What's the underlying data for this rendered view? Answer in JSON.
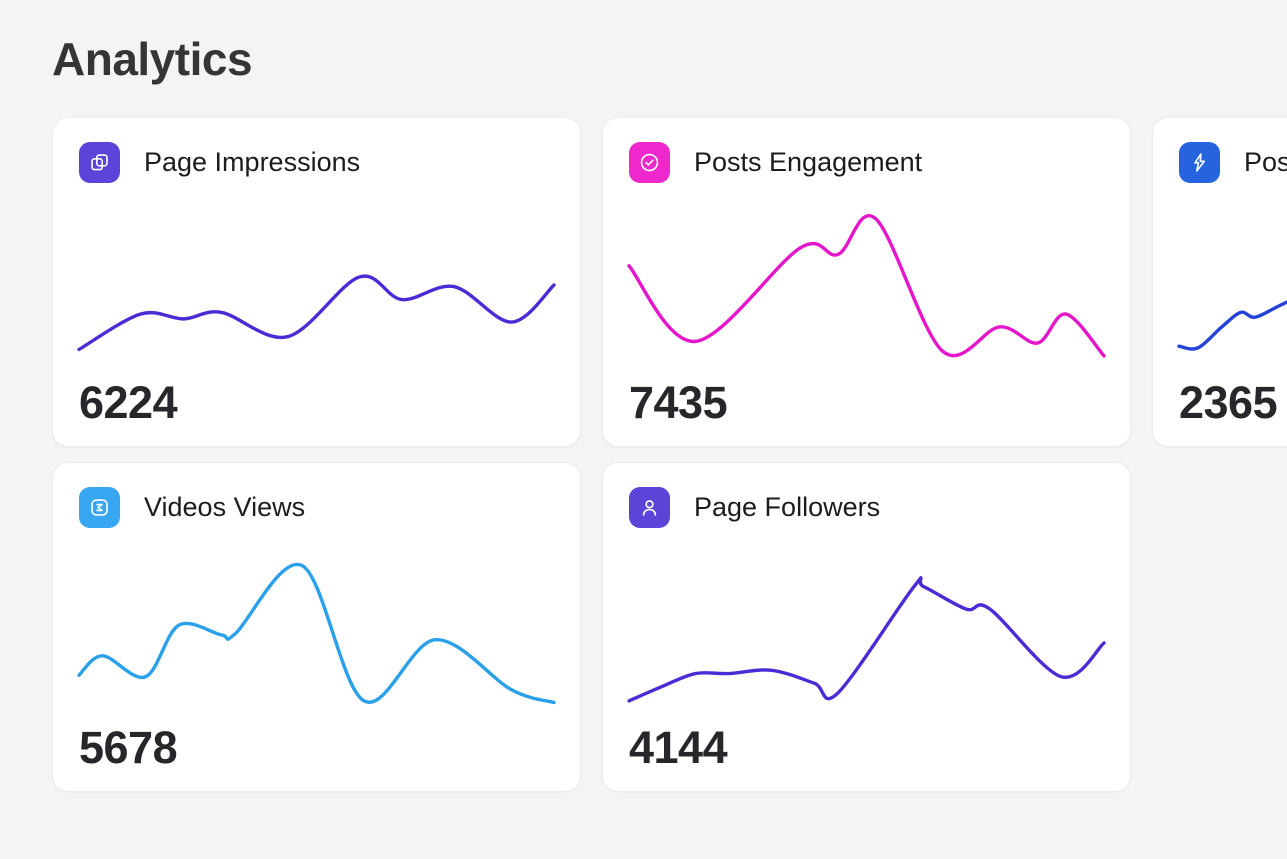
{
  "page": {
    "title": "Analytics",
    "background": "#F4F4F5"
  },
  "cards": [
    {
      "title": "Page Impressions",
      "value": "6224",
      "icon": "pages-icon",
      "icon_bg": "#5B44D8",
      "line_color": "#4C2AD6"
    },
    {
      "title": "Posts Engagement",
      "value": "7435",
      "icon": "check-circle-icon",
      "icon_bg": "#EE28CC",
      "line_color": "#E615CB"
    },
    {
      "title": "Post",
      "value": "2365",
      "icon": "lightning-icon",
      "icon_bg": "#2563DF",
      "line_color": "#2342D8"
    },
    {
      "title": "Videos Views",
      "value": "5678",
      "icon": "sigma-box-icon",
      "icon_bg": "#38A6F1",
      "line_color": "#2AA0EA"
    },
    {
      "title": "Page Followers",
      "value": "4144",
      "icon": "user-icon",
      "icon_bg": "#5B44D8",
      "line_color": "#4C2AD6"
    }
  ],
  "chart_data": [
    {
      "type": "line",
      "title": "Page Impressions",
      "current_value": 6224,
      "axes": "none (sparkline, unlabeled)",
      "y_orientation": "0=top, 100=bottom (screen space)",
      "points_norm": [
        [
          0,
          86
        ],
        [
          13,
          64
        ],
        [
          22,
          67
        ],
        [
          30,
          63
        ],
        [
          44,
          78
        ],
        [
          59,
          41
        ],
        [
          68,
          55
        ],
        [
          79,
          47
        ],
        [
          91,
          69
        ],
        [
          100,
          46
        ]
      ]
    },
    {
      "type": "line",
      "title": "Posts Engagement",
      "current_value": 7435,
      "axes": "none (sparkline, unlabeled)",
      "y_orientation": "0=top, 100=bottom (screen space)",
      "points_norm": [
        [
          0,
          34
        ],
        [
          14,
          81
        ],
        [
          36,
          23
        ],
        [
          44,
          27
        ],
        [
          52,
          5
        ],
        [
          66,
          87
        ],
        [
          78,
          72
        ],
        [
          86,
          82
        ],
        [
          92,
          64
        ],
        [
          100,
          90
        ]
      ]
    },
    {
      "type": "line",
      "title": "Post (card clipped at right viewport edge)",
      "current_value": 2365,
      "axes": "none (sparkline, unlabeled)",
      "y_orientation": "0=top, 100=bottom (screen space)",
      "points_norm": [
        [
          0,
          84
        ],
        [
          4,
          85
        ],
        [
          9,
          72
        ],
        [
          13,
          63
        ],
        [
          16,
          66
        ],
        [
          21,
          59
        ],
        [
          26,
          52
        ]
      ]
    },
    {
      "type": "line",
      "title": "Videos Views",
      "current_value": 5678,
      "axes": "none (sparkline, unlabeled)",
      "y_orientation": "0=top, 100=bottom (screen space)",
      "points_norm": [
        [
          0,
          74
        ],
        [
          5,
          62
        ],
        [
          14,
          75
        ],
        [
          21,
          43
        ],
        [
          30,
          49
        ],
        [
          33,
          48
        ],
        [
          47,
          6
        ],
        [
          60,
          90
        ],
        [
          75,
          52
        ],
        [
          91,
          83
        ],
        [
          100,
          91
        ]
      ]
    },
    {
      "type": "line",
      "title": "Page Followers",
      "current_value": 4144,
      "axes": "none (sparkline, unlabeled)",
      "y_orientation": "0=top, 100=bottom (screen space)",
      "points_norm": [
        [
          0,
          90
        ],
        [
          7,
          81
        ],
        [
          14,
          73
        ],
        [
          21,
          73
        ],
        [
          30,
          71
        ],
        [
          39,
          79
        ],
        [
          44,
          85
        ],
        [
          60,
          19
        ],
        [
          62,
          19
        ],
        [
          71,
          33
        ],
        [
          76,
          33
        ],
        [
          91,
          75
        ],
        [
          100,
          54
        ]
      ]
    }
  ]
}
